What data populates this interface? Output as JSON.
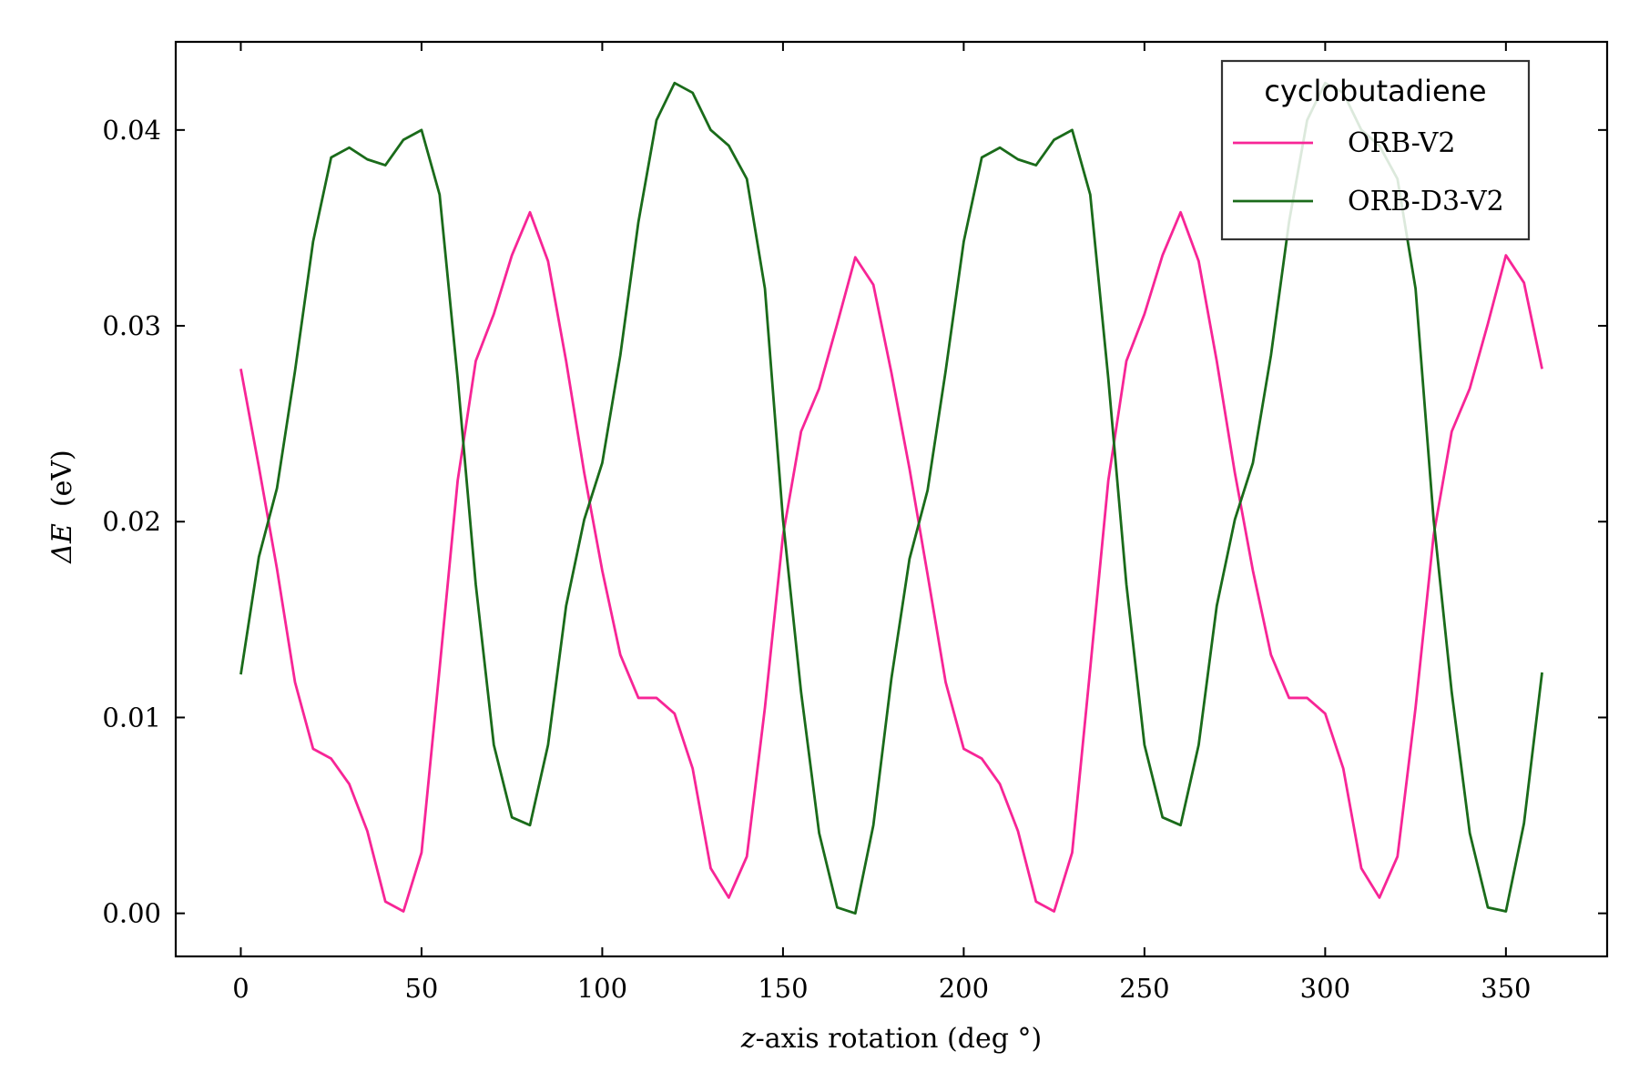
{
  "chart_data": {
    "type": "line",
    "xlabel_var": "z",
    "xlabel_rest": "-axis rotation (deg °)",
    "ylabel_symbol": "ΔE",
    "ylabel_unit": "(eV)",
    "xlim": [
      -18,
      378
    ],
    "ylim": [
      -0.0022,
      0.0445
    ],
    "xticks": [
      0,
      50,
      100,
      150,
      200,
      250,
      300,
      350
    ],
    "xtick_labels": [
      "0",
      "50",
      "100",
      "150",
      "200",
      "250",
      "300",
      "350"
    ],
    "yticks": [
      0.0,
      0.01,
      0.02,
      0.03,
      0.04
    ],
    "ytick_labels": [
      "0.00",
      "0.01",
      "0.02",
      "0.03",
      "0.04"
    ],
    "grid": false,
    "legend": {
      "title": "cyclobutadiene",
      "placement": "top-right"
    },
    "x": [
      0,
      5,
      10,
      15,
      20,
      25,
      30,
      35,
      40,
      45,
      50,
      55,
      60,
      65,
      70,
      75,
      80,
      85,
      90,
      95,
      100,
      105,
      110,
      115,
      120,
      125,
      130,
      135,
      140,
      145,
      150,
      155,
      160,
      165,
      170,
      175,
      180,
      185,
      190,
      195,
      200,
      205,
      210,
      215,
      220,
      225,
      230,
      235,
      240,
      245,
      250,
      255,
      260,
      265,
      270,
      275,
      280,
      285,
      290,
      295,
      300,
      305,
      310,
      315,
      320,
      325,
      330,
      335,
      340,
      345,
      350,
      355,
      360
    ],
    "series": [
      {
        "name": "ORB-V2",
        "color": "#f72596",
        "values": [
          0.0278,
          0.0228,
          0.0176,
          0.0118,
          0.0084,
          0.0079,
          0.0066,
          0.0042,
          0.0006,
          0.0001,
          0.0031,
          0.0125,
          0.0221,
          0.0282,
          0.0306,
          0.0336,
          0.0358,
          0.0333,
          0.0282,
          0.0225,
          0.0175,
          0.0132,
          0.011,
          0.011,
          0.0102,
          0.0074,
          0.0023,
          0.0008,
          0.0029,
          0.0105,
          0.0193,
          0.0246,
          0.0268,
          0.0301,
          0.0335,
          0.0321,
          0.0276,
          0.0227,
          0.0173,
          0.0118,
          0.0084,
          0.0079,
          0.0066,
          0.0042,
          0.0006,
          0.0001,
          0.0031,
          0.0125,
          0.0221,
          0.0282,
          0.0306,
          0.0336,
          0.0358,
          0.0333,
          0.0282,
          0.0225,
          0.0175,
          0.0132,
          0.011,
          0.011,
          0.0102,
          0.0074,
          0.0023,
          0.0008,
          0.0029,
          0.0105,
          0.0193,
          0.0246,
          0.0268,
          0.0301,
          0.0336,
          0.0322,
          0.0278
        ]
      },
      {
        "name": "ORB-D3-V2",
        "color": "#1a6b1a",
        "values": [
          0.0122,
          0.0182,
          0.0217,
          0.0277,
          0.0343,
          0.0386,
          0.0391,
          0.0385,
          0.0382,
          0.0395,
          0.04,
          0.0367,
          0.0273,
          0.0168,
          0.0086,
          0.0049,
          0.0045,
          0.0086,
          0.0157,
          0.0201,
          0.023,
          0.0285,
          0.0353,
          0.0405,
          0.0424,
          0.0419,
          0.04,
          0.0392,
          0.0375,
          0.0319,
          0.0201,
          0.0113,
          0.0041,
          0.0003,
          0.0,
          0.0045,
          0.012,
          0.0181,
          0.0216,
          0.0277,
          0.0343,
          0.0386,
          0.0391,
          0.0385,
          0.0382,
          0.0395,
          0.04,
          0.0367,
          0.0273,
          0.0168,
          0.0086,
          0.0049,
          0.0045,
          0.0086,
          0.0157,
          0.0201,
          0.023,
          0.0285,
          0.0353,
          0.0405,
          0.0424,
          0.0419,
          0.04,
          0.0392,
          0.0375,
          0.0319,
          0.0201,
          0.0113,
          0.0041,
          0.0003,
          0.0001,
          0.0046,
          0.0123
        ]
      }
    ]
  }
}
